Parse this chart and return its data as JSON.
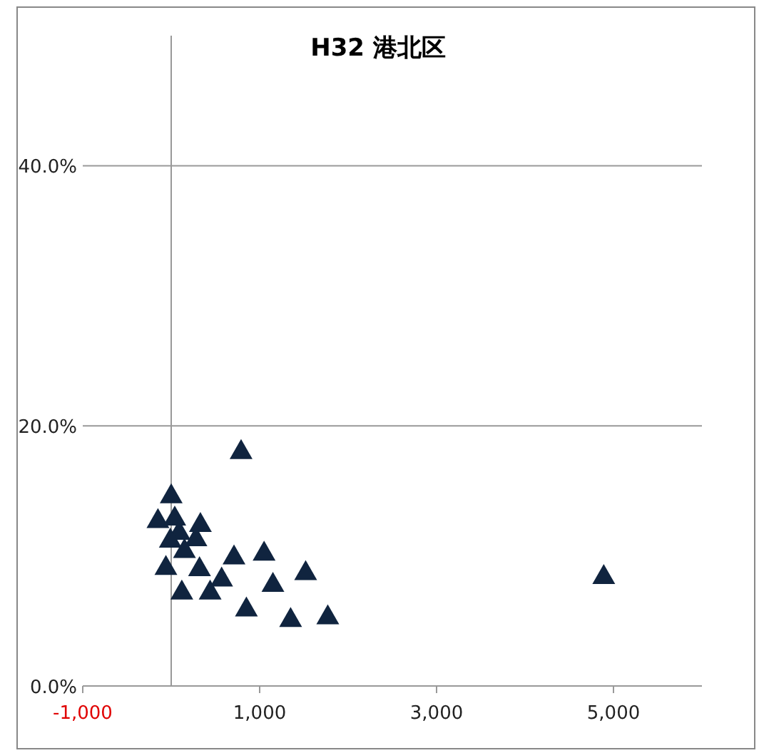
{
  "chart_data": {
    "type": "scatter",
    "title": "H32  港北区",
    "marker": "triangle",
    "grid": "y",
    "color": "#10243f",
    "xlim": [
      -1000,
      6000
    ],
    "xticks": [
      {
        "value": -1000,
        "label": "-1,000"
      },
      {
        "value": 1000,
        "label": "1,000"
      },
      {
        "value": 3000,
        "label": "3,000"
      },
      {
        "value": 5000,
        "label": "5,000"
      }
    ],
    "ylim": [
      0,
      50
    ],
    "yticks": [
      {
        "value": 0,
        "label": "0.0%"
      },
      {
        "value": 20,
        "label": "20.0%"
      },
      {
        "value": 40,
        "label": "40.0%"
      }
    ],
    "x": [
      790,
      0,
      -150,
      40,
      330,
      90,
      -10,
      280,
      150,
      710,
      1050,
      -60,
      320,
      570,
      1520,
      1150,
      120,
      440,
      850,
      1350,
      1770,
      4890
    ],
    "values": [
      18.1,
      14.7,
      12.8,
      13.0,
      12.5,
      11.9,
      11.3,
      11.4,
      10.5,
      10.0,
      10.3,
      9.2,
      9.1,
      8.3,
      8.8,
      7.9,
      7.3,
      7.3,
      6.0,
      5.2,
      5.4,
      8.5
    ]
  }
}
